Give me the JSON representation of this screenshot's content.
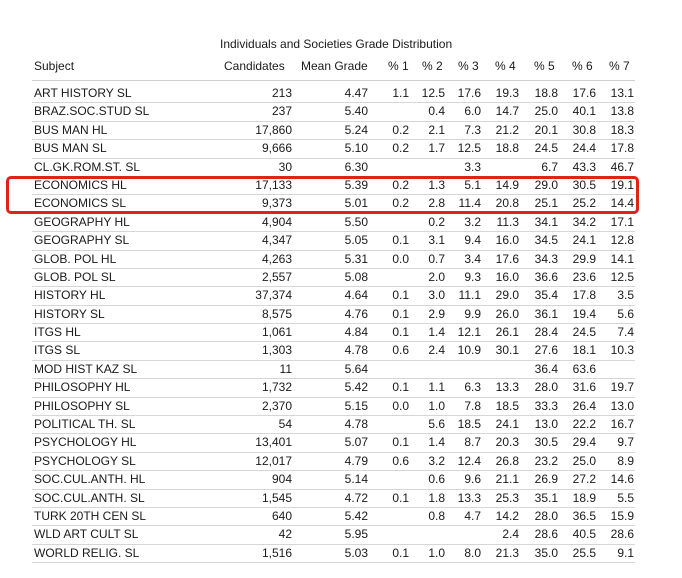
{
  "table": {
    "title": "Individuals and Societies Grade Distribution",
    "headers": {
      "subject": "Subject",
      "candidates": "Candidates",
      "mean": "Mean Grade",
      "p1": "% 1",
      "p2": "% 2",
      "p3": "% 3",
      "p4": "% 4",
      "p5": "% 5",
      "p6": "% 6",
      "p7": "% 7"
    },
    "rows": [
      {
        "subject": "ART HISTORY SL",
        "candidates": "213",
        "mean": "4.47",
        "p1": "1.1",
        "p2": "12.5",
        "p3": "17.6",
        "p4": "19.3",
        "p5": "18.8",
        "p6": "17.6",
        "p7": "13.1"
      },
      {
        "subject": "BRAZ.SOC.STUD SL",
        "candidates": "237",
        "mean": "5.40",
        "p1": "",
        "p2": "0.4",
        "p3": "6.0",
        "p4": "14.7",
        "p5": "25.0",
        "p6": "40.1",
        "p7": "13.8"
      },
      {
        "subject": "BUS MAN HL",
        "candidates": "17,860",
        "mean": "5.24",
        "p1": "0.2",
        "p2": "2.1",
        "p3": "7.3",
        "p4": "21.2",
        "p5": "20.1",
        "p6": "30.8",
        "p7": "18.3"
      },
      {
        "subject": "BUS MAN SL",
        "candidates": "9,666",
        "mean": "5.10",
        "p1": "0.2",
        "p2": "1.7",
        "p3": "12.5",
        "p4": "18.8",
        "p5": "24.5",
        "p6": "24.4",
        "p7": "17.8"
      },
      {
        "subject": "CL.GK.ROM.ST. SL",
        "candidates": "30",
        "mean": "6.30",
        "p1": "",
        "p2": "",
        "p3": "3.3",
        "p4": "",
        "p5": "6.7",
        "p6": "43.3",
        "p7": "46.7"
      },
      {
        "subject": "ECONOMICS HL",
        "candidates": "17,133",
        "mean": "5.39",
        "p1": "0.2",
        "p2": "1.3",
        "p3": "5.1",
        "p4": "14.9",
        "p5": "29.0",
        "p6": "30.5",
        "p7": "19.1"
      },
      {
        "subject": "ECONOMICS SL",
        "candidates": "9,373",
        "mean": "5.01",
        "p1": "0.2",
        "p2": "2.8",
        "p3": "11.4",
        "p4": "20.8",
        "p5": "25.1",
        "p6": "25.2",
        "p7": "14.4"
      },
      {
        "subject": "GEOGRAPHY HL",
        "candidates": "4,904",
        "mean": "5.50",
        "p1": "",
        "p2": "0.2",
        "p3": "3.2",
        "p4": "11.3",
        "p5": "34.1",
        "p6": "34.2",
        "p7": "17.1"
      },
      {
        "subject": "GEOGRAPHY SL",
        "candidates": "4,347",
        "mean": "5.05",
        "p1": "0.1",
        "p2": "3.1",
        "p3": "9.4",
        "p4": "16.0",
        "p5": "34.5",
        "p6": "24.1",
        "p7": "12.8"
      },
      {
        "subject": "GLOB. POL HL",
        "candidates": "4,263",
        "mean": "5.31",
        "p1": "0.0",
        "p2": "0.7",
        "p3": "3.4",
        "p4": "17.6",
        "p5": "34.3",
        "p6": "29.9",
        "p7": "14.1"
      },
      {
        "subject": "GLOB. POL SL",
        "candidates": "2,557",
        "mean": "5.08",
        "p1": "",
        "p2": "2.0",
        "p3": "9.3",
        "p4": "16.0",
        "p5": "36.6",
        "p6": "23.6",
        "p7": "12.5"
      },
      {
        "subject": "HISTORY HL",
        "candidates": "37,374",
        "mean": "4.64",
        "p1": "0.1",
        "p2": "3.0",
        "p3": "11.1",
        "p4": "29.0",
        "p5": "35.4",
        "p6": "17.8",
        "p7": "3.5"
      },
      {
        "subject": "HISTORY SL",
        "candidates": "8,575",
        "mean": "4.76",
        "p1": "0.1",
        "p2": "2.9",
        "p3": "9.9",
        "p4": "26.0",
        "p5": "36.1",
        "p6": "19.4",
        "p7": "5.6"
      },
      {
        "subject": "ITGS HL",
        "candidates": "1,061",
        "mean": "4.84",
        "p1": "0.1",
        "p2": "1.4",
        "p3": "12.1",
        "p4": "26.1",
        "p5": "28.4",
        "p6": "24.5",
        "p7": "7.4"
      },
      {
        "subject": "ITGS SL",
        "candidates": "1,303",
        "mean": "4.78",
        "p1": "0.6",
        "p2": "2.4",
        "p3": "10.9",
        "p4": "30.1",
        "p5": "27.6",
        "p6": "18.1",
        "p7": "10.3"
      },
      {
        "subject": "MOD HIST KAZ SL",
        "candidates": "11",
        "mean": "5.64",
        "p1": "",
        "p2": "",
        "p3": "",
        "p4": "",
        "p5": "36.4",
        "p6": "63.6",
        "p7": ""
      },
      {
        "subject": "PHILOSOPHY HL",
        "candidates": "1,732",
        "mean": "5.42",
        "p1": "0.1",
        "p2": "1.1",
        "p3": "6.3",
        "p4": "13.3",
        "p5": "28.0",
        "p6": "31.6",
        "p7": "19.7"
      },
      {
        "subject": "PHILOSOPHY SL",
        "candidates": "2,370",
        "mean": "5.15",
        "p1": "0.0",
        "p2": "1.0",
        "p3": "7.8",
        "p4": "18.5",
        "p5": "33.3",
        "p6": "26.4",
        "p7": "13.0"
      },
      {
        "subject": "POLITICAL TH. SL",
        "candidates": "54",
        "mean": "4.78",
        "p1": "",
        "p2": "5.6",
        "p3": "18.5",
        "p4": "24.1",
        "p5": "13.0",
        "p6": "22.2",
        "p7": "16.7"
      },
      {
        "subject": "PSYCHOLOGY HL",
        "candidates": "13,401",
        "mean": "5.07",
        "p1": "0.1",
        "p2": "1.4",
        "p3": "8.7",
        "p4": "20.3",
        "p5": "30.5",
        "p6": "29.4",
        "p7": "9.7"
      },
      {
        "subject": "PSYCHOLOGY SL",
        "candidates": "12,017",
        "mean": "4.79",
        "p1": "0.6",
        "p2": "3.2",
        "p3": "12.4",
        "p4": "26.8",
        "p5": "23.2",
        "p6": "25.0",
        "p7": "8.9"
      },
      {
        "subject": "SOC.CUL.ANTH. HL",
        "candidates": "904",
        "mean": "5.14",
        "p1": "",
        "p2": "0.6",
        "p3": "9.6",
        "p4": "21.1",
        "p5": "26.9",
        "p6": "27.2",
        "p7": "14.6"
      },
      {
        "subject": "SOC.CUL.ANTH. SL",
        "candidates": "1,545",
        "mean": "4.72",
        "p1": "0.1",
        "p2": "1.8",
        "p3": "13.3",
        "p4": "25.3",
        "p5": "35.1",
        "p6": "18.9",
        "p7": "5.5"
      },
      {
        "subject": "TURK 20TH CEN SL",
        "candidates": "640",
        "mean": "5.42",
        "p1": "",
        "p2": "0.8",
        "p3": "4.7",
        "p4": "14.2",
        "p5": "28.0",
        "p6": "36.5",
        "p7": "15.9"
      },
      {
        "subject": "WLD ART CULT SL",
        "candidates": "42",
        "mean": "5.95",
        "p1": "",
        "p2": "",
        "p3": "",
        "p4": "2.4",
        "p5": "28.6",
        "p6": "40.5",
        "p7": "28.6"
      },
      {
        "subject": "WORLD RELIG. SL",
        "candidates": "1,516",
        "mean": "5.03",
        "p1": "0.1",
        "p2": "1.0",
        "p3": "8.0",
        "p4": "21.3",
        "p5": "35.0",
        "p6": "25.5",
        "p7": "9.1"
      }
    ]
  },
  "annotation": {
    "highlight_color": "#e0231a",
    "highlighted_subjects": [
      "ECONOMICS HL",
      "ECONOMICS SL"
    ]
  }
}
